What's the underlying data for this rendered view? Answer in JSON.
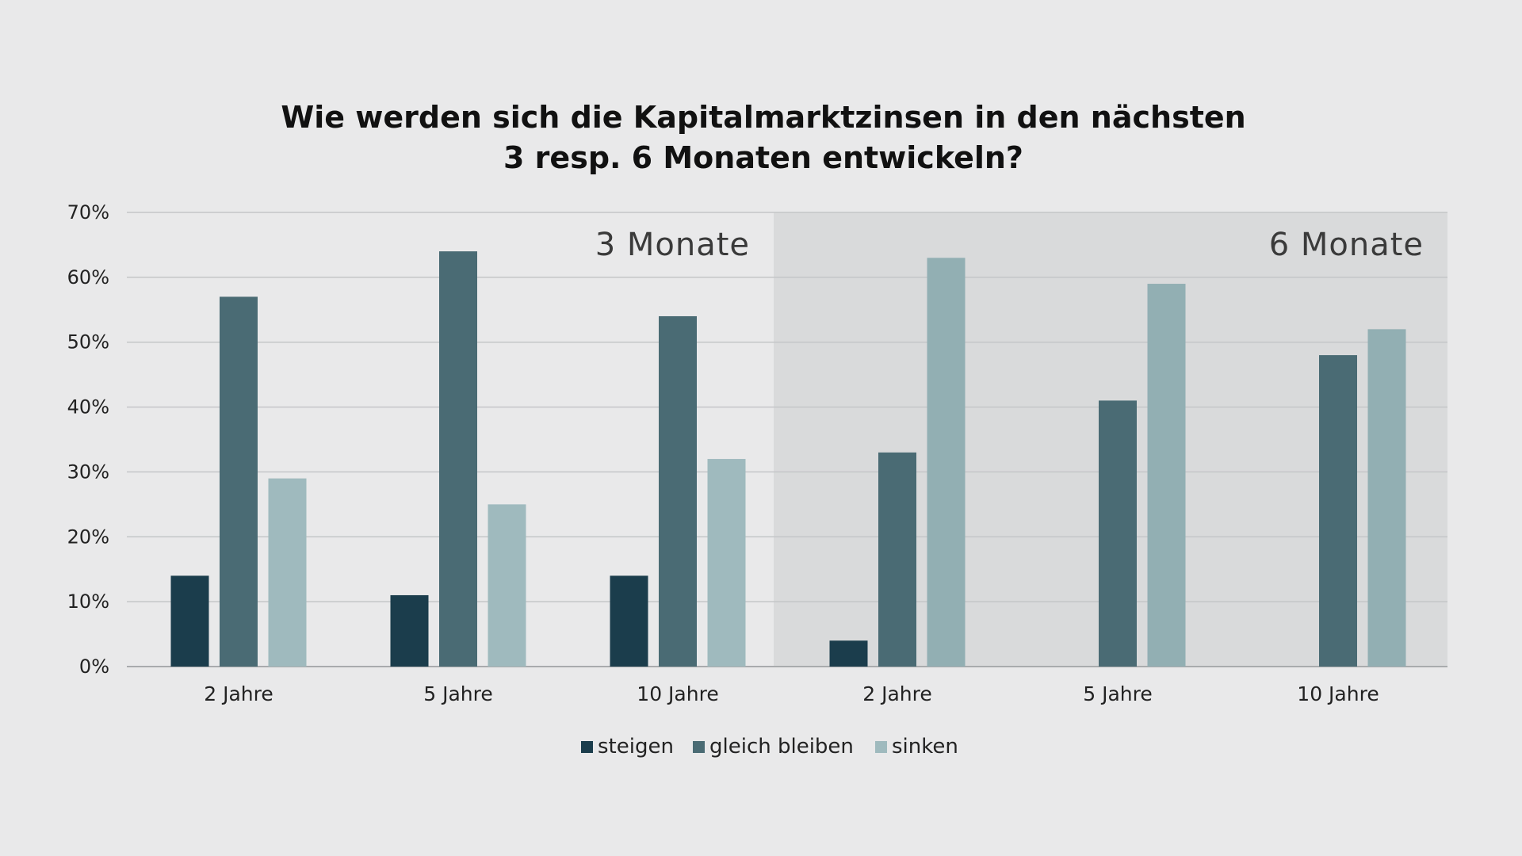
{
  "chart_data": {
    "type": "bar",
    "title": [
      "Wie werden sich die Kapitalmarktzinsen in den nächsten",
      "3 resp. 6 Monaten entwickeln?"
    ],
    "ylim": [
      0,
      70
    ],
    "yticks": [
      "0%",
      "10%",
      "20%",
      "30%",
      "40%",
      "50%",
      "60%",
      "70%"
    ],
    "grid": true,
    "legend_position": "bottom-center",
    "panels": [
      {
        "label": "3 Monate",
        "categories": [
          "2 Jahre",
          "5 Jahre",
          "10 Jahre"
        ],
        "series": [
          {
            "name": "steigen",
            "values": [
              14,
              11,
              14
            ]
          },
          {
            "name": "gleich bleiben",
            "values": [
              57,
              64,
              54
            ]
          },
          {
            "name": "sinken",
            "values": [
              29,
              25,
              32
            ]
          }
        ]
      },
      {
        "label": "6 Monate",
        "categories": [
          "2 Jahre",
          "5 Jahre",
          "10 Jahre"
        ],
        "series": [
          {
            "name": "steigen",
            "values": [
              4,
              0,
              0
            ]
          },
          {
            "name": "gleich bleiben",
            "values": [
              33,
              41,
              48
            ]
          },
          {
            "name": "sinken",
            "values": [
              63,
              59,
              52
            ]
          }
        ]
      }
    ],
    "legend": [
      "steigen",
      "gleich bleiben",
      "sinken"
    ],
    "colors": {
      "background": "#e9e9ea",
      "panel_shade": "#d9dadb",
      "grid": "#c4c6c8",
      "steigen": "#1b3d4c",
      "gleich_bleiben": "#4a6b74",
      "sinken": "#9fbabe",
      "sinken_shaded": "#92afb3"
    }
  }
}
